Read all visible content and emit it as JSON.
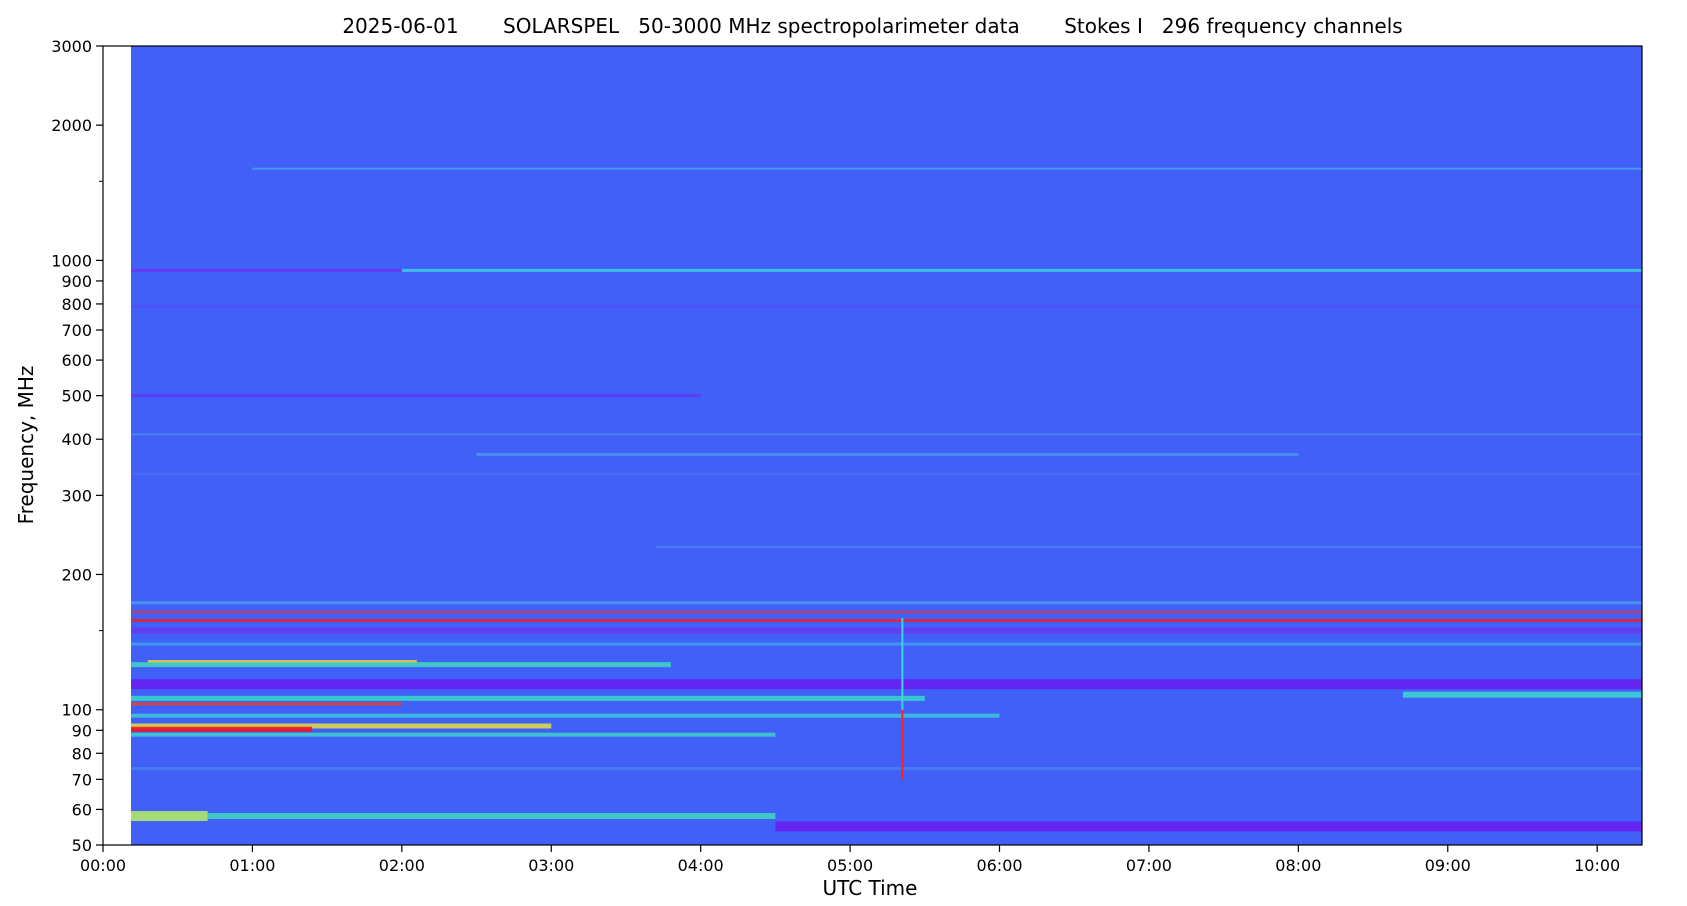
{
  "chart_data": {
    "type": "heatmap",
    "title_parts": [
      "2025-06-01",
      "SOLARSPEL",
      "50-3000 MHz spectropolarimeter data",
      "Stokes I",
      "296 frequency channels"
    ],
    "xlabel": "UTC Time",
    "ylabel": "Frequency, MHz",
    "y_scale": "log",
    "ylim": [
      50,
      3000
    ],
    "x_range_hours": [
      0,
      10.3
    ],
    "data_start_hours": 0.0,
    "x_ticks": [
      {
        "h": 0,
        "label": "00:00"
      },
      {
        "h": 1,
        "label": "01:00"
      },
      {
        "h": 2,
        "label": "02:00"
      },
      {
        "h": 3,
        "label": "03:00"
      },
      {
        "h": 4,
        "label": "04:00"
      },
      {
        "h": 5,
        "label": "05:00"
      },
      {
        "h": 6,
        "label": "06:00"
      },
      {
        "h": 7,
        "label": "07:00"
      },
      {
        "h": 8,
        "label": "08:00"
      },
      {
        "h": 9,
        "label": "09:00"
      },
      {
        "h": 10,
        "label": "10:00"
      }
    ],
    "y_ticks": [
      {
        "f": 50,
        "label": "50"
      },
      {
        "f": 60,
        "label": "60"
      },
      {
        "f": 70,
        "label": "70"
      },
      {
        "f": 80,
        "label": "80"
      },
      {
        "f": 90,
        "label": "90"
      },
      {
        "f": 100,
        "label": "100"
      },
      {
        "f": 200,
        "label": "200"
      },
      {
        "f": 300,
        "label": "300"
      },
      {
        "f": 400,
        "label": "400"
      },
      {
        "f": 500,
        "label": "500"
      },
      {
        "f": 600,
        "label": "600"
      },
      {
        "f": 700,
        "label": "700"
      },
      {
        "f": 800,
        "label": "800"
      },
      {
        "f": 900,
        "label": "900"
      },
      {
        "f": 1000,
        "label": "1000"
      },
      {
        "f": 2000,
        "label": "2000"
      },
      {
        "f": 3000,
        "label": "3000"
      }
    ],
    "y_minor_ticks": [
      150,
      1500
    ],
    "colormap": "rainbow",
    "background_color": "#4060f8",
    "bands": [
      {
        "f": 1600,
        "h0": 1.0,
        "h1": 10.3,
        "color": "#49a3ee",
        "weight": 2
      },
      {
        "f": 950,
        "h0": 0.0,
        "h1": 2.0,
        "color": "#6a34f4",
        "weight": 3
      },
      {
        "f": 950,
        "h0": 2.0,
        "h1": 10.3,
        "color": "#3ecbe4",
        "weight": 3
      },
      {
        "f": 790,
        "h0": 0.0,
        "h1": 10.3,
        "color": "#5a48f4",
        "weight": 2
      },
      {
        "f": 500,
        "h0": 0.0,
        "h1": 4.0,
        "color": "#6236f6",
        "weight": 3
      },
      {
        "f": 410,
        "h0": 0.0,
        "h1": 10.3,
        "color": "#4a8af0",
        "weight": 2
      },
      {
        "f": 370,
        "h0": 2.5,
        "h1": 8.0,
        "color": "#4a96ee",
        "weight": 3
      },
      {
        "f": 335,
        "h0": 0.0,
        "h1": 10.3,
        "color": "#4a70f4",
        "weight": 2
      },
      {
        "f": 230,
        "h0": 3.7,
        "h1": 10.3,
        "color": "#4a88ee",
        "weight": 2
      },
      {
        "f": 173,
        "h0": 0.0,
        "h1": 10.3,
        "color": "#4a9cee",
        "weight": 3
      },
      {
        "f": 165,
        "h0": 0.0,
        "h1": 10.3,
        "color": "#ee3030",
        "weight": 2
      },
      {
        "f": 158,
        "h0": 0.0,
        "h1": 10.3,
        "color": "#ee2020",
        "weight": 3
      },
      {
        "f": 150,
        "h0": 0.0,
        "h1": 10.3,
        "color": "#6a38f0",
        "weight": 6
      },
      {
        "f": 140,
        "h0": 0.0,
        "h1": 10.3,
        "color": "#40a0ee",
        "weight": 3
      },
      {
        "f": 128,
        "h0": 0.3,
        "h1": 2.1,
        "color": "#ffd030",
        "weight": 3
      },
      {
        "f": 126,
        "h0": 0.0,
        "h1": 3.8,
        "color": "#40d8c0",
        "weight": 5
      },
      {
        "f": 114,
        "h0": 0.0,
        "h1": 10.3,
        "color": "#6a1cf0",
        "weight": 10
      },
      {
        "f": 108,
        "h0": 8.7,
        "h1": 10.3,
        "color": "#40d8d0",
        "weight": 6
      },
      {
        "f": 106,
        "h0": 0.0,
        "h1": 5.5,
        "color": "#38d8c8",
        "weight": 5
      },
      {
        "f": 103,
        "h0": 0.0,
        "h1": 2.0,
        "color": "#f04020",
        "weight": 3
      },
      {
        "f": 97,
        "h0": 0.0,
        "h1": 6.0,
        "color": "#3cc8d8",
        "weight": 4
      },
      {
        "f": 92,
        "h0": 0.0,
        "h1": 3.0,
        "color": "#e0e040",
        "weight": 5
      },
      {
        "f": 90.5,
        "h0": 0.0,
        "h1": 1.4,
        "color": "#ff1010",
        "weight": 5
      },
      {
        "f": 88,
        "h0": 0.0,
        "h1": 4.5,
        "color": "#40d0c8",
        "weight": 4
      },
      {
        "f": 74,
        "h0": 0.0,
        "h1": 10.3,
        "color": "#4880f0",
        "weight": 3
      },
      {
        "f": 58,
        "h0": 0.0,
        "h1": 0.7,
        "color": "#b8f060",
        "weight": 10
      },
      {
        "f": 58,
        "h0": 0.7,
        "h1": 4.5,
        "color": "#40d8c0",
        "weight": 6
      },
      {
        "f": 55,
        "h0": 4.5,
        "h1": 10.3,
        "color": "#6a1cf0",
        "weight": 10
      }
    ],
    "events": [
      {
        "h": 5.35,
        "f_low": 70,
        "f_high": 100,
        "color": "#ff2020"
      },
      {
        "h": 5.35,
        "f_low": 100,
        "f_high": 160,
        "color": "#40d0e8"
      }
    ]
  }
}
